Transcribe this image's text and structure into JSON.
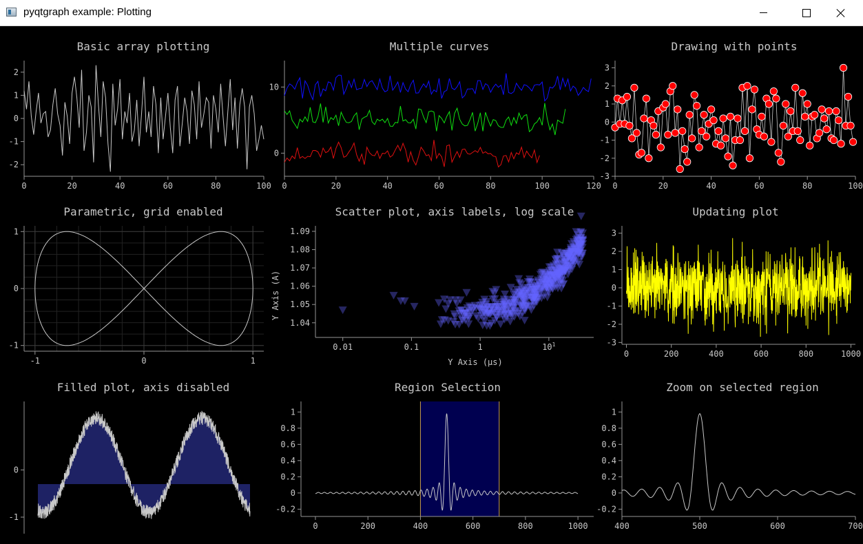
{
  "window": {
    "title": "pyqtgraph example: Plotting"
  },
  "colors": {
    "axis": "#969696",
    "text": "#c8c8c8",
    "curve": "#c8c8c8",
    "blue": "#1010ff",
    "green": "#10e010",
    "red": "#e01010",
    "yellow": "#ffff00",
    "fill": "#1e2264",
    "region": "#000050",
    "region_edge": "#c8a050",
    "scatter": "#6464ff"
  },
  "chart_data": [
    {
      "type": "line",
      "title": "Basic array plotting",
      "xlim": [
        0,
        100
      ],
      "ylim": [
        -2.5,
        2.5
      ],
      "xticks": [
        "0",
        "20",
        "40",
        "60",
        "80",
        "100"
      ],
      "yticks": [
        "-2",
        "-1",
        "0",
        "1",
        "2"
      ],
      "series": [
        {
          "values": [
            1.2,
            0.4,
            1.6,
            0.1,
            -0.7,
            0.3,
            1.1,
            -0.2,
            0.2,
            0.3,
            -0.8,
            -0.5,
            0.6,
            1.3,
            0.2,
            -0.3,
            -1.6,
            0.7,
            0.1,
            -1.1,
            1.1,
            1.8,
            0.9,
            -0.4,
            2.1,
            -1.4,
            -0.6,
            1.0,
            0.5,
            -1.9,
            2.3,
            0.6,
            -0.8,
            1.6,
            0.9,
            -1.1,
            -2.3,
            1.5,
            -0.3,
            0.4,
            1.7,
            -0.9,
            0.3,
            -0.2,
            1.1,
            -1.0,
            -0.5,
            0.8,
            -1.2,
            0.2,
            1.8,
            -0.6,
            0.3,
            -0.8,
            1.4,
            0.6,
            -1.5,
            0.9,
            -0.9,
            0.1,
            1.1,
            -0.4,
            -1.5,
            0.8,
            1.4,
            -1.2,
            -0.2,
            0.9,
            0.3,
            -1.1,
            1.2,
            0.6,
            -0.9,
            1.6,
            -0.4,
            0.2,
            0.9,
            0.7,
            -1.3,
            1.0,
            0.4,
            -0.6,
            1.5,
            0.1,
            -1.2,
            0.3,
            1.7,
            -0.5,
            0.9,
            -1.3,
            0.6,
            1.3,
            0.5,
            -2.2,
            0.5,
            1.0,
            0.2,
            -1.4,
            -0.9,
            -0.3,
            -0.9
          ]
        }
      ]
    },
    {
      "type": "line",
      "title": "Multiple curves",
      "xlim": [
        0,
        120
      ],
      "ylim": [
        -3.5,
        14
      ],
      "xticks": [
        "0",
        "20",
        "40",
        "60",
        "80",
        "100",
        "120"
      ],
      "yticks": [
        "0",
        "10"
      ],
      "series": [
        {
          "color": "blue",
          "length": 120,
          "center": 10,
          "amp": 1.1
        },
        {
          "color": "green",
          "length": 110,
          "center": 5,
          "amp": 1.1
        },
        {
          "color": "red",
          "length": 100,
          "center": 0,
          "amp": 1.1
        }
      ]
    },
    {
      "type": "scatter",
      "title": "Drawing with points",
      "xlim": [
        0,
        100
      ],
      "ylim": [
        -3,
        3.4
      ],
      "xticks": [
        "0",
        "20",
        "40",
        "60",
        "80",
        "100"
      ],
      "yticks": [
        "-3",
        "-2",
        "-1",
        "0",
        "1",
        "2",
        "3"
      ],
      "values": [
        -0.3,
        1.3,
        -0.1,
        1.2,
        -0.1,
        1.4,
        -0.2,
        -0.9,
        1.9,
        -0.6,
        -1.8,
        -1.7,
        0.2,
        1.3,
        -2.0,
        0.1,
        -0.2,
        -0.7,
        0.6,
        -1.4,
        0.8,
        1.0,
        -0.7,
        1.7,
        2.0,
        -0.6,
        0.7,
        -2.6,
        -0.5,
        -1.5,
        -2.2,
        0.4,
        -0.9,
        1.5,
        0.9,
        -1.4,
        -0.5,
        0.4,
        -0.8,
        -0.1,
        0.7,
        0.1,
        -1.2,
        -0.5,
        -1.3,
        0.2,
        -0.9,
        -1.9,
        0.3,
        -2.4,
        -1.0,
        0.2,
        -1.0,
        1.9,
        -0.5,
        2.0,
        -2.0,
        0.7,
        1.8,
        -0.4,
        -0.7,
        0.3,
        -0.8,
        1.3,
        1.0,
        -1.1,
        1.7,
        1.3,
        -1.7,
        -2.2,
        -0.2,
        1.0,
        -0.8,
        0.6,
        -0.5,
        1.9,
        -0.5,
        -1.0,
        1.6,
        0.3,
        1.0,
        -1.3,
        0.3,
        0.4,
        -0.9,
        -0.6,
        0.7,
        0.2,
        -0.4,
        0.6,
        -0.9,
        -1.0,
        0.6,
        0.1,
        -1.2,
        3.0,
        -0.2,
        1.4,
        -0.2,
        -1.1
      ]
    },
    {
      "type": "line",
      "title": "Parametric, grid enabled",
      "xlim": [
        -1.1,
        1.1
      ],
      "ylim": [
        -1.1,
        1.1
      ],
      "xticks": [
        "-1",
        "0",
        "1"
      ],
      "yticks": [
        "-1",
        "0",
        "1"
      ],
      "grid": true
    },
    {
      "type": "scatter",
      "title": "Scatter plot, axis labels, log scale",
      "xlabel": "Y Axis (μs)",
      "ylabel": "Y Axis (A)",
      "xscale": "log",
      "xlim": [
        0.004,
        45
      ],
      "ylim": [
        1.032,
        1.093
      ],
      "xticks": [
        "0.01",
        "0.1",
        "1",
        "10"
      ],
      "xtick_last_exp": "1",
      "yticks": [
        "1.04",
        "1.05",
        "1.06",
        "1.07",
        "1.08",
        "1.09"
      ]
    },
    {
      "type": "line",
      "title": "Updating plot",
      "xlim": [
        -20,
        1020
      ],
      "ylim": [
        -3.1,
        3.4
      ],
      "xticks": [
        "0",
        "200",
        "400",
        "600",
        "800",
        "1000"
      ],
      "yticks": [
        "-3",
        "-2",
        "-1",
        "0",
        "1",
        "2",
        "3"
      ]
    },
    {
      "type": "area",
      "title": "Filled plot, axis disabled",
      "ylim": [
        -1.35,
        1.45
      ],
      "yticks": [
        "-1",
        "0"
      ],
      "fill_level": -0.3
    },
    {
      "type": "line",
      "title": "Region Selection",
      "xlim": [
        -55,
        1060
      ],
      "ylim": [
        -0.29,
        1.13
      ],
      "xticks": [
        "0",
        "200",
        "400",
        "600",
        "800",
        "1000"
      ],
      "yticks": [
        "-0.2",
        "0",
        "0.2",
        "0.4",
        "0.6",
        "0.8",
        "1"
      ],
      "region": [
        400,
        700
      ]
    },
    {
      "type": "line",
      "title": "Zoom on selected region",
      "xlim": [
        400,
        700
      ],
      "ylim": [
        -0.29,
        1.13
      ],
      "xticks": [
        "400",
        "500",
        "600",
        "700"
      ],
      "yticks": [
        "-0.2",
        "0",
        "0.2",
        "0.4",
        "0.6",
        "0.8",
        "1"
      ]
    }
  ]
}
